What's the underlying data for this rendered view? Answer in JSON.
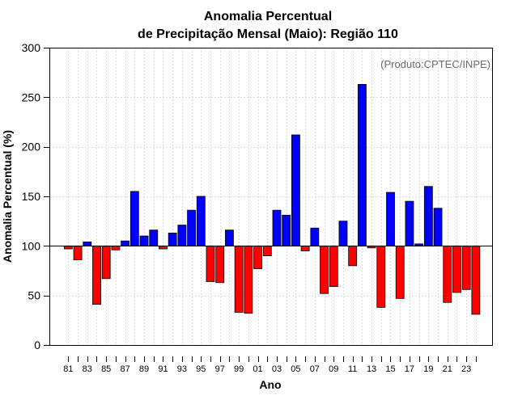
{
  "chart_data": {
    "type": "bar",
    "title": "Anomalia Percentual",
    "subtitle": "de Precipitação Mensal (Maio): Região 110",
    "xlabel": "Ano",
    "ylabel": "Anomalia Percentual (%)",
    "credit": "(Produto:CPTEC/INPE)",
    "ylim": [
      0,
      300
    ],
    "yticks": [
      0,
      50,
      100,
      150,
      200,
      250,
      300
    ],
    "baseline": 100,
    "grid": true,
    "colors": {
      "above": "#0000ff",
      "below": "#ff0000",
      "edge": "#000000",
      "grid": "#d9d9d9"
    },
    "categories": [
      "81",
      "82",
      "83",
      "84",
      "85",
      "86",
      "87",
      "88",
      "89",
      "90",
      "91",
      "92",
      "93",
      "94",
      "95",
      "96",
      "97",
      "98",
      "99",
      "00",
      "01",
      "02",
      "03",
      "04",
      "05",
      "06",
      "07",
      "08",
      "09",
      "10",
      "11",
      "12",
      "13",
      "14",
      "15",
      "16",
      "17",
      "18",
      "19",
      "20",
      "21",
      "22",
      "23",
      "24"
    ],
    "xtick_labels": [
      "81",
      "83",
      "85",
      "87",
      "89",
      "91",
      "93",
      "95",
      "97",
      "99",
      "01",
      "03",
      "05",
      "07",
      "09",
      "11",
      "13",
      "15",
      "17",
      "19",
      "21",
      "23"
    ],
    "values": [
      97,
      86,
      104,
      41,
      67,
      96,
      105,
      155,
      110,
      116,
      97,
      113,
      121,
      136,
      150,
      64,
      63,
      116,
      33,
      32,
      77,
      90,
      136,
      131,
      212,
      95,
      118,
      52,
      59,
      125,
      80,
      263,
      98,
      38,
      154,
      47,
      145,
      102,
      160,
      138,
      43,
      53,
      56,
      31
    ]
  }
}
